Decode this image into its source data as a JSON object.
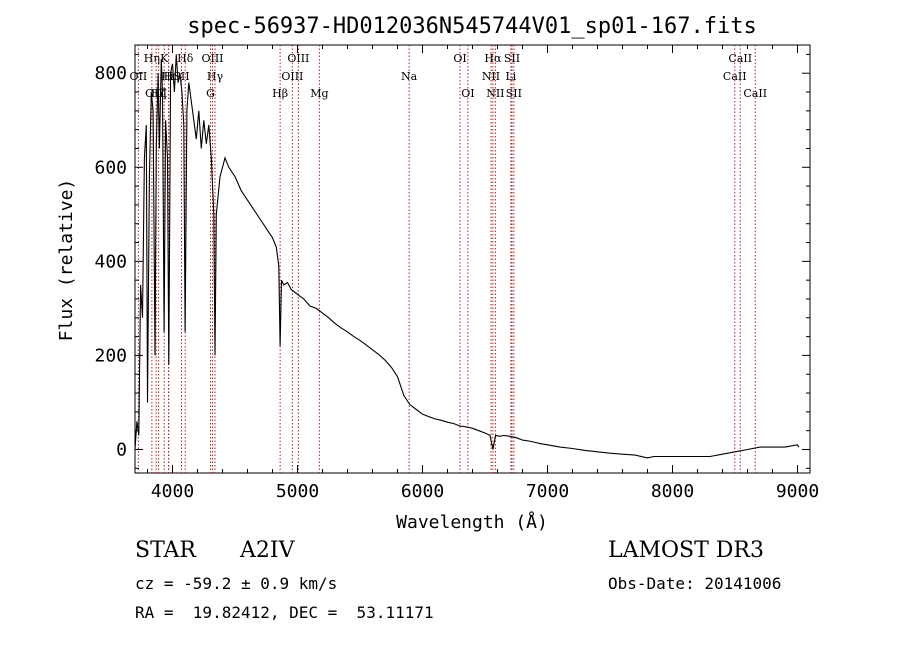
{
  "chart_data": {
    "type": "line",
    "title": "spec-56937-HD012036N545744V01_sp01-167.fits",
    "xlabel": "Wavelength (Å)",
    "ylabel": "Flux (relative)",
    "xlim": [
      3700,
      9100
    ],
    "ylim": [
      -50,
      860
    ],
    "x_ticks": [
      4000,
      5000,
      6000,
      7000,
      8000,
      9000
    ],
    "y_ticks": [
      0,
      200,
      400,
      600,
      800
    ],
    "series": [
      {
        "name": "spectrum",
        "points": [
          [
            3700,
            0
          ],
          [
            3715,
            60
          ],
          [
            3730,
            30
          ],
          [
            3745,
            350
          ],
          [
            3760,
            280
          ],
          [
            3775,
            620
          ],
          [
            3790,
            690
          ],
          [
            3800,
            100
          ],
          [
            3815,
            580
          ],
          [
            3830,
            760
          ],
          [
            3845,
            720
          ],
          [
            3860,
            200
          ],
          [
            3870,
            640
          ],
          [
            3885,
            800
          ],
          [
            3895,
            640
          ],
          [
            3910,
            830
          ],
          [
            3920,
            760
          ],
          [
            3933,
            250
          ],
          [
            3945,
            700
          ],
          [
            3960,
            620
          ],
          [
            3970,
            180
          ],
          [
            3985,
            800
          ],
          [
            4000,
            820
          ],
          [
            4015,
            760
          ],
          [
            4030,
            840
          ],
          [
            4045,
            780
          ],
          [
            4060,
            800
          ],
          [
            4075,
            760
          ],
          [
            4090,
            690
          ],
          [
            4101,
            250
          ],
          [
            4115,
            720
          ],
          [
            4130,
            780
          ],
          [
            4150,
            740
          ],
          [
            4170,
            700
          ],
          [
            4190,
            660
          ],
          [
            4210,
            720
          ],
          [
            4230,
            640
          ],
          [
            4250,
            700
          ],
          [
            4270,
            650
          ],
          [
            4290,
            690
          ],
          [
            4310,
            620
          ],
          [
            4330,
            500
          ],
          [
            4340,
            200
          ],
          [
            4350,
            500
          ],
          [
            4380,
            580
          ],
          [
            4420,
            620
          ],
          [
            4450,
            600
          ],
          [
            4500,
            580
          ],
          [
            4550,
            550
          ],
          [
            4600,
            530
          ],
          [
            4650,
            510
          ],
          [
            4700,
            490
          ],
          [
            4750,
            470
          ],
          [
            4800,
            450
          ],
          [
            4830,
            430
          ],
          [
            4850,
            390
          ],
          [
            4861,
            220
          ],
          [
            4872,
            360
          ],
          [
            4890,
            350
          ],
          [
            4920,
            355
          ],
          [
            4950,
            340
          ],
          [
            5000,
            330
          ],
          [
            5050,
            320
          ],
          [
            5100,
            305
          ],
          [
            5150,
            300
          ],
          [
            5200,
            290
          ],
          [
            5250,
            280
          ],
          [
            5300,
            268
          ],
          [
            5350,
            258
          ],
          [
            5400,
            250
          ],
          [
            5450,
            240
          ],
          [
            5500,
            232
          ],
          [
            5550,
            222
          ],
          [
            5600,
            212
          ],
          [
            5650,
            202
          ],
          [
            5700,
            190
          ],
          [
            5750,
            175
          ],
          [
            5800,
            155
          ],
          [
            5850,
            115
          ],
          [
            5900,
            95
          ],
          [
            5950,
            85
          ],
          [
            6000,
            75
          ],
          [
            6050,
            70
          ],
          [
            6100,
            65
          ],
          [
            6150,
            62
          ],
          [
            6200,
            58
          ],
          [
            6250,
            55
          ],
          [
            6300,
            50
          ],
          [
            6350,
            48
          ],
          [
            6400,
            45
          ],
          [
            6450,
            40
          ],
          [
            6500,
            35
          ],
          [
            6540,
            30
          ],
          [
            6563,
            0
          ],
          [
            6585,
            30
          ],
          [
            6620,
            28
          ],
          [
            6650,
            30
          ],
          [
            6700,
            28
          ],
          [
            6750,
            25
          ],
          [
            6800,
            20
          ],
          [
            6850,
            18
          ],
          [
            6900,
            15
          ],
          [
            6950,
            12
          ],
          [
            7000,
            10
          ],
          [
            7100,
            5
          ],
          [
            7200,
            2
          ],
          [
            7300,
            -2
          ],
          [
            7400,
            -5
          ],
          [
            7500,
            -8
          ],
          [
            7600,
            -10
          ],
          [
            7700,
            -12
          ],
          [
            7800,
            -18
          ],
          [
            7850,
            -15
          ],
          [
            7900,
            -15
          ],
          [
            8000,
            -15
          ],
          [
            8100,
            -15
          ],
          [
            8200,
            -15
          ],
          [
            8300,
            -15
          ],
          [
            8400,
            -10
          ],
          [
            8500,
            -5
          ],
          [
            8600,
            0
          ],
          [
            8700,
            5
          ],
          [
            8800,
            5
          ],
          [
            8900,
            5
          ],
          [
            9000,
            10
          ],
          [
            9010,
            5
          ]
        ]
      }
    ],
    "lines": [
      {
        "name": "OII",
        "x": 3727,
        "row": 1
      },
      {
        "name": "Hη",
        "x": 3835,
        "row": 0
      },
      {
        "name": "OIII",
        "x": 3869,
        "row": 2
      },
      {
        "name": "Hζ",
        "x": 3889,
        "row": 2
      },
      {
        "name": "K",
        "x": 3934,
        "row": 0
      },
      {
        "name": "H",
        "x": 3968,
        "row": 1
      },
      {
        "name": "Hε",
        "x": 3970,
        "row": 1
      },
      {
        "name": "SII",
        "x": 4072,
        "row": 1
      },
      {
        "name": "Hδ",
        "x": 4102,
        "row": 0
      },
      {
        "name": "OIII",
        "x": 4320,
        "row": 0
      },
      {
        "name": "Hγ",
        "x": 4340,
        "row": 1
      },
      {
        "name": "G",
        "x": 4304,
        "row": 2
      },
      {
        "name": "Hβ",
        "x": 4861,
        "row": 2
      },
      {
        "name": "OIII",
        "x": 4959,
        "row": 1
      },
      {
        "name": "OIII",
        "x": 5007,
        "row": 0
      },
      {
        "name": "Mg",
        "x": 5175,
        "row": 2
      },
      {
        "name": "Na",
        "x": 5893,
        "row": 1
      },
      {
        "name": "OI",
        "x": 6300,
        "row": 0
      },
      {
        "name": "OI",
        "x": 6363,
        "row": 2
      },
      {
        "name": "NII",
        "x": 6548,
        "row": 1
      },
      {
        "name": "Hα",
        "x": 6563,
        "row": 0
      },
      {
        "name": "NII",
        "x": 6583,
        "row": 2
      },
      {
        "name": "Li",
        "x": 6707,
        "row": 1
      },
      {
        "name": "SII",
        "x": 6716,
        "row": 0
      },
      {
        "name": "SII",
        "x": 6731,
        "row": 2
      },
      {
        "name": "CaII",
        "x": 8498,
        "row": 1
      },
      {
        "name": "CaII",
        "x": 8542,
        "row": 0
      },
      {
        "name": "CaII",
        "x": 8662,
        "row": 2
      }
    ]
  },
  "info": {
    "object_class": "STAR",
    "subclass": "A2IV",
    "survey": "LAMOST DR3",
    "cz": "cz = -59.2 ± 0.9 km/s",
    "obs_date": "Obs-Date: 20141006",
    "coords": "RA =  19.82412, DEC =  53.11171"
  },
  "colors": {
    "spectrum": "#000000",
    "line_marker": "#b22222",
    "axis": "#000000"
  }
}
